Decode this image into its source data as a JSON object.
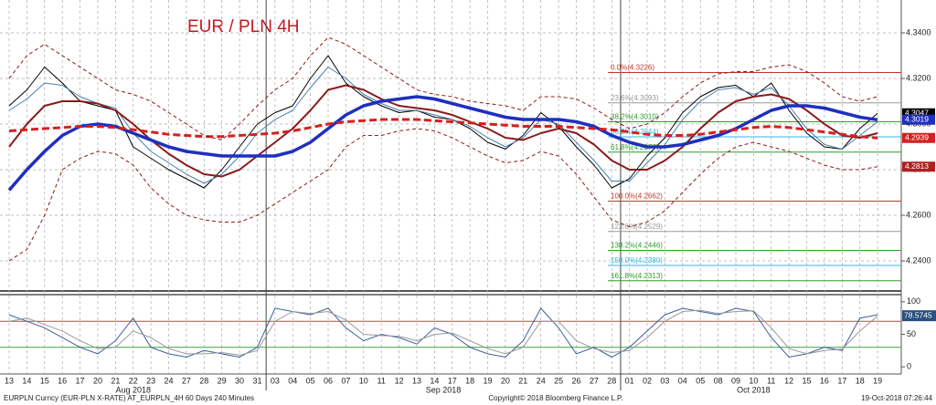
{
  "chart_data": {
    "type": "line",
    "title": "EUR / PLN 4H",
    "footer_left": "EURPLN Curncy (EUR-PLN X-RATE) AT_EURPLN_4H 60 Days 240 Minutes",
    "footer_center": "Copyright© 2018 Bloomberg Finance L.P.",
    "footer_right": "19-Oct-2018 07:26:44",
    "categories": [
      "13",
      "14",
      "15",
      "16",
      "17",
      "20",
      "21",
      "22",
      "23",
      "24",
      "27",
      "28",
      "29",
      "30",
      "31",
      "03",
      "04",
      "05",
      "06",
      "07",
      "10",
      "11",
      "12",
      "13",
      "14",
      "17",
      "18",
      "19",
      "20",
      "21",
      "24",
      "25",
      "26",
      "27",
      "28",
      "01",
      "02",
      "03",
      "04",
      "05",
      "08",
      "09",
      "10",
      "11",
      "12",
      "15",
      "16",
      "17",
      "18",
      "19"
    ],
    "months": [
      "Aug 2018",
      "Sep 2018",
      "Oct 2018"
    ],
    "ylim": [
      4.2272,
      4.3544
    ],
    "yticks": [
      {
        "value": 4.24,
        "label": "4.2400"
      },
      {
        "value": 4.26,
        "label": "4.2600"
      },
      {
        "value": 4.28,
        "label": "4.2800"
      },
      {
        "value": 4.3,
        "label": "4.3000"
      },
      {
        "value": 4.32,
        "label": "4.3200"
      },
      {
        "value": 4.34,
        "label": "4.3400"
      }
    ],
    "grid": true,
    "series": [
      {
        "color": "#000000",
        "width": 1,
        "values": [
          4.308,
          4.315,
          4.325,
          4.318,
          4.31,
          4.308,
          4.306,
          4.29,
          4.285,
          4.28,
          4.276,
          4.272,
          4.28,
          4.29,
          4.3,
          4.305,
          4.308,
          4.32,
          4.33,
          4.318,
          4.312,
          4.308,
          4.305,
          4.306,
          4.303,
          4.302,
          4.298,
          4.292,
          4.289,
          4.295,
          4.305,
          4.299,
          4.29,
          4.282,
          4.272,
          4.276,
          4.286,
          4.294,
          4.305,
          4.312,
          4.316,
          4.317,
          4.312,
          4.318,
          4.306,
          4.296,
          4.29,
          4.289,
          4.298,
          4.3047
        ]
      },
      {
        "color": "#4a7fb0",
        "width": 1,
        "values": [
          4.306,
          4.311,
          4.318,
          4.317,
          4.312,
          4.309,
          4.307,
          4.296,
          4.288,
          4.283,
          4.278,
          4.274,
          4.278,
          4.286,
          4.296,
          4.302,
          4.306,
          4.316,
          4.325,
          4.32,
          4.313,
          4.309,
          4.306,
          4.306,
          4.304,
          4.302,
          4.299,
          4.294,
          4.29,
          4.294,
          4.302,
          4.3,
          4.292,
          4.284,
          4.275,
          4.275,
          4.283,
          4.291,
          4.302,
          4.31,
          4.315,
          4.316,
          4.313,
          4.316,
          4.308,
          4.298,
          4.291,
          4.289,
          4.295,
          4.301
        ]
      },
      {
        "color": "#8b1a1a",
        "width": 2,
        "values": [
          4.29,
          4.3,
          4.308,
          4.31,
          4.31,
          4.309,
          4.306,
          4.3,
          4.293,
          4.287,
          4.282,
          4.278,
          4.277,
          4.28,
          4.286,
          4.292,
          4.298,
          4.306,
          4.315,
          4.317,
          4.315,
          4.311,
          4.308,
          4.307,
          4.306,
          4.304,
          4.301,
          4.298,
          4.294,
          4.293,
          4.296,
          4.298,
          4.296,
          4.291,
          4.284,
          4.28,
          4.28,
          4.284,
          4.29,
          4.298,
          4.305,
          4.31,
          4.312,
          4.313,
          4.311,
          4.306,
          4.3,
          4.295,
          4.294,
          4.296
        ]
      },
      {
        "color": "#1f2fbf",
        "width": 3.5,
        "values": [
          4.271,
          4.28,
          4.288,
          4.295,
          4.299,
          4.3,
          4.299,
          4.296,
          4.293,
          4.29,
          4.288,
          4.287,
          4.286,
          4.286,
          4.286,
          4.286,
          4.288,
          4.292,
          4.298,
          4.304,
          4.308,
          4.31,
          4.311,
          4.312,
          4.311,
          4.309,
          4.307,
          4.305,
          4.303,
          4.302,
          4.302,
          4.302,
          4.301,
          4.299,
          4.295,
          4.292,
          4.29,
          4.29,
          4.291,
          4.293,
          4.295,
          4.298,
          4.302,
          4.306,
          4.308,
          4.308,
          4.307,
          4.305,
          4.303,
          4.3019
        ]
      },
      {
        "color": "#d42020",
        "width": 3,
        "dash": true,
        "values": [
          4.297,
          4.2975,
          4.298,
          4.2985,
          4.299,
          4.299,
          4.2985,
          4.2975,
          4.2965,
          4.2955,
          4.295,
          4.2945,
          4.2945,
          4.295,
          4.2955,
          4.296,
          4.297,
          4.2985,
          4.3,
          4.301,
          4.3015,
          4.302,
          4.302,
          4.302,
          4.3015,
          4.301,
          4.3005,
          4.3,
          4.2995,
          4.299,
          4.299,
          4.299,
          4.2985,
          4.298,
          4.2975,
          4.2965,
          4.2955,
          4.295,
          4.295,
          4.2955,
          4.2965,
          4.2975,
          4.2985,
          4.299,
          4.2985,
          4.2975,
          4.2965,
          4.2955,
          4.2945,
          4.2939
        ]
      },
      {
        "color": "#8b1a1a",
        "width": 1,
        "dash": true,
        "values": [
          4.32,
          4.33,
          4.335,
          4.33,
          4.325,
          4.32,
          4.315,
          4.313,
          4.31,
          4.305,
          4.3,
          4.295,
          4.293,
          4.3,
          4.308,
          4.315,
          4.32,
          4.33,
          4.338,
          4.335,
          4.33,
          4.325,
          4.32,
          4.315,
          4.313,
          4.312,
          4.31,
          4.309,
          4.308,
          4.306,
          4.312,
          4.312,
          4.311,
          4.307,
          4.302,
          4.298,
          4.3,
          4.305,
          4.312,
          4.318,
          4.322,
          4.323,
          4.323,
          4.325,
          4.326,
          4.323,
          4.318,
          4.312,
          4.31,
          4.312
        ]
      },
      {
        "color": "#8b1a1a",
        "width": 1,
        "dash": true,
        "values": [
          4.24,
          4.245,
          4.26,
          4.28,
          4.285,
          4.288,
          4.287,
          4.282,
          4.272,
          4.265,
          4.26,
          4.258,
          4.257,
          4.257,
          4.26,
          4.265,
          4.27,
          4.275,
          4.28,
          4.29,
          4.295,
          4.295,
          4.297,
          4.298,
          4.297,
          4.294,
          4.29,
          4.286,
          4.283,
          4.284,
          4.288,
          4.286,
          4.278,
          4.268,
          4.258,
          4.255,
          4.257,
          4.262,
          4.27,
          4.278,
          4.285,
          4.29,
          4.292,
          4.29,
          4.288,
          4.285,
          4.282,
          4.28,
          4.28,
          4.2813
        ]
      }
    ],
    "fib_levels": [
      {
        "value": 4.3226,
        "label": "0.0%(4.3226)",
        "color": "#c0392b"
      },
      {
        "value": 4.3093,
        "label": "23.6%(4.3093)",
        "color": "#999999"
      },
      {
        "value": 4.301,
        "label": "38.2%(4.3010)",
        "color": "#2e9e2e"
      },
      {
        "value": 4.2944,
        "label": "50.0%(4.2944)",
        "color": "#30b8d8"
      },
      {
        "value": 4.2877,
        "label": "61.8%(4.2877)",
        "color": "#2e9e2e"
      },
      {
        "value": 4.2662,
        "label": "100.0%(4.2662)",
        "color": "#c0392b"
      },
      {
        "value": 4.2529,
        "label": "123.6%(4.2529)",
        "color": "#999999"
      },
      {
        "value": 4.2446,
        "label": "138.2%(4.2446)",
        "color": "#2e9e2e"
      },
      {
        "value": 4.238,
        "label": "150.0%(4.2380)",
        "color": "#30b8d8"
      },
      {
        "value": 4.2313,
        "label": "161.8%(4.2313)",
        "color": "#2e9e2e"
      }
    ],
    "price_labels": [
      {
        "value": 4.3047,
        "label": "4.3047",
        "color": "#000000"
      },
      {
        "value": 4.3019,
        "label": "4.3019",
        "color": "#1f2fbf"
      },
      {
        "value": 4.2939,
        "label": "4.2939",
        "color": "#d42020"
      },
      {
        "value": 4.2813,
        "label": "4.2813",
        "color": "#b02020"
      }
    ],
    "oscillator": {
      "ylim": [
        -11,
        111
      ],
      "yticks": [
        0,
        50,
        100
      ],
      "levels": [
        {
          "value": 70,
          "color": "#d04040"
        },
        {
          "value": 30,
          "color": "#40a040"
        }
      ],
      "last": {
        "value": 78.5745,
        "label": "78.5745"
      },
      "series": [
        {
          "color": "#3a5f9a",
          "values": [
            80,
            70,
            60,
            45,
            30,
            20,
            40,
            75,
            30,
            20,
            15,
            25,
            20,
            15,
            30,
            90,
            85,
            80,
            90,
            60,
            40,
            50,
            45,
            35,
            60,
            50,
            30,
            20,
            15,
            40,
            90,
            60,
            20,
            30,
            15,
            30,
            55,
            80,
            90,
            85,
            80,
            90,
            85,
            45,
            15,
            20,
            30,
            25,
            75,
            80
          ]
        },
        {
          "color": "#999999",
          "values": [
            70,
            75,
            65,
            55,
            40,
            28,
            30,
            55,
            45,
            28,
            20,
            20,
            22,
            18,
            25,
            70,
            85,
            82,
            85,
            72,
            50,
            48,
            47,
            40,
            50,
            52,
            40,
            28,
            20,
            30,
            70,
            70,
            40,
            28,
            22,
            25,
            45,
            70,
            85,
            87,
            82,
            85,
            86,
            60,
            28,
            20,
            25,
            27,
            55,
            78
          ]
        }
      ]
    }
  }
}
